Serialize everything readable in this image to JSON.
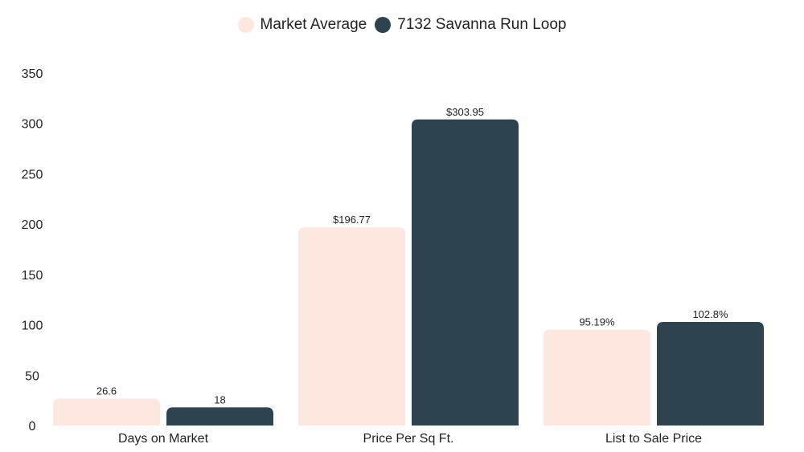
{
  "chart_data": {
    "type": "bar",
    "categories": [
      "Days on Market",
      "Price Per Sq Ft.",
      "List to Sale Price"
    ],
    "series": [
      {
        "name": "Market Average",
        "color": "#fde7de",
        "values": [
          26.6,
          196.77,
          95.19
        ],
        "labels": [
          "26.6",
          "$196.77",
          "95.19%"
        ]
      },
      {
        "name": "7132 Savanna Run Loop",
        "color": "#2e4350",
        "values": [
          18,
          303.95,
          102.8
        ],
        "labels": [
          "18",
          "$303.95",
          "102.8%"
        ]
      }
    ],
    "yticks": [
      0,
      50,
      100,
      150,
      200,
      250,
      300,
      350
    ],
    "ylim": [
      0,
      350
    ],
    "grid": false,
    "legend": "top-center"
  }
}
